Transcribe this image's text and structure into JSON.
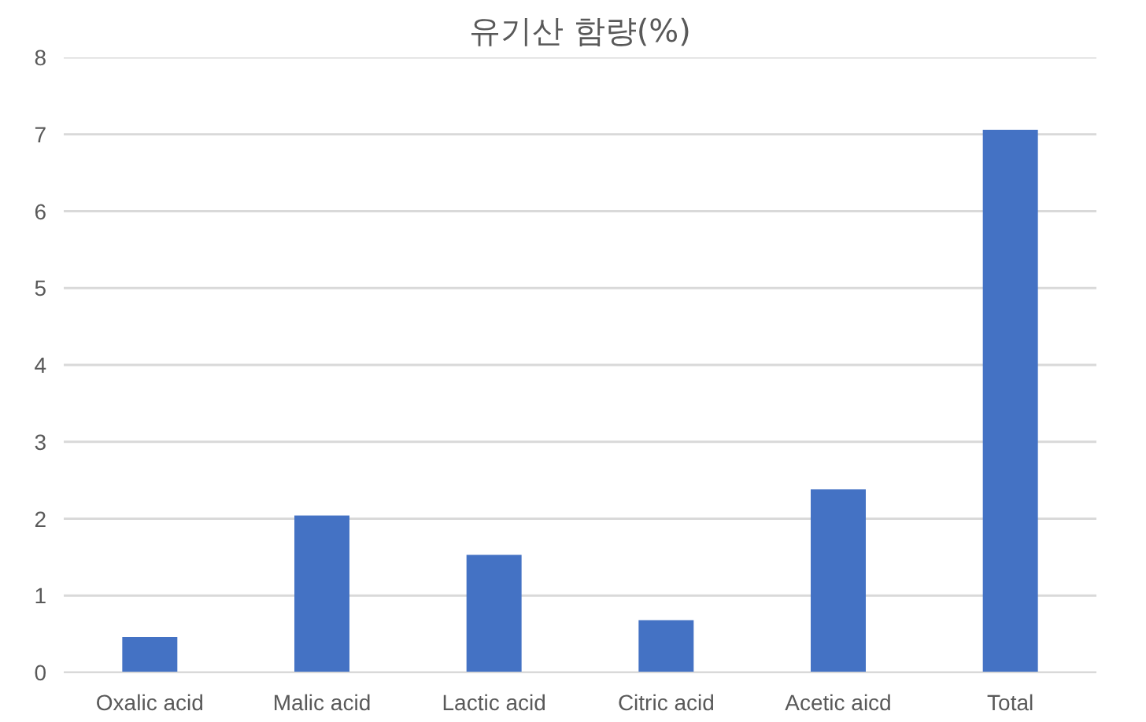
{
  "chart_data": {
    "type": "bar",
    "title": "유기산 함량(%)",
    "categories": [
      "Oxalic acid",
      "Malic acid",
      "Lactic acid",
      "Citric acid",
      "Acetic aicd",
      "Total"
    ],
    "values": [
      0.46,
      2.04,
      1.53,
      0.68,
      2.38,
      7.06
    ],
    "color": "#4472c4",
    "ylim": [
      0,
      8
    ],
    "yticks": [
      0,
      1,
      2,
      3,
      4,
      5,
      6,
      7,
      8
    ],
    "grid": "y"
  }
}
